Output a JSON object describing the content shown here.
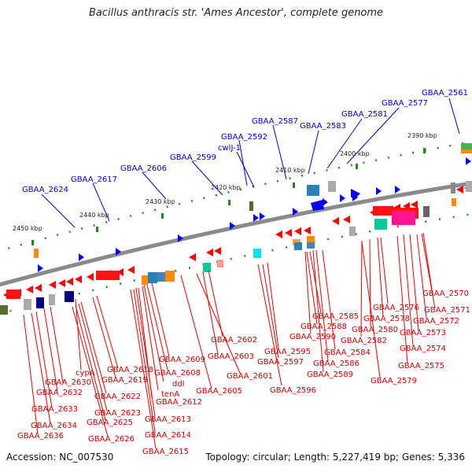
{
  "title": "Bacillus anthracis str. 'Ames Ancestor', complete genome",
  "footer": {
    "accession": "Accession: NC_007530",
    "summary": "Topology: circular; Length: 5,227,419 bp; Genes: 5,336"
  },
  "ruler": [
    {
      "label": "2390 kbp"
    },
    {
      "label": "2400 kbp"
    },
    {
      "label": "2410 kbp"
    },
    {
      "label": "2420 kbp"
    },
    {
      "label": "2430 kbp"
    },
    {
      "label": "2440 kbp"
    },
    {
      "label": "2450 kbp"
    }
  ],
  "top_labels": [
    "GBAA_2561",
    "GBAA_2577",
    "GBAA_2581",
    "GBAA_2583",
    "GBAA_2587",
    "GBAA_2592",
    "cwlJ-1",
    "GBAA_2599",
    "GBAA_2606",
    "GBAA_2617",
    "GBAA_2624"
  ],
  "bottom_labels": [
    "GBAA_2570",
    "GBAA_2571",
    "GBAA_2572",
    "GBAA_2573",
    "GBAA_2574",
    "GBAA_2575",
    "GBAA_2576",
    "GBAA_2578",
    "GBAA_2580",
    "GBAA_2582",
    "GBAA_2579",
    "GBAA_2585",
    "GBAA_2588",
    "GBAA_2590",
    "GBAA_2584",
    "GBAA_2586",
    "GBAA_2589",
    "GBAA_2595",
    "GBAA_2597",
    "GBAA_2596",
    "GBAA_2602",
    "GBAA_2603",
    "GBAA_2601",
    "GBAA_2605",
    "GBAA_2609",
    "GBAA_2608",
    "ddl",
    "tenA",
    "GBAA_2612",
    "GBAA_2613",
    "GBAA_2614",
    "GBAA_2615",
    "GBAA_2618",
    "GBAA_2619",
    "cypA",
    "GBAA_2622",
    "GBAA_2623",
    "GBAA_2625",
    "GBAA_2626",
    "GBAA_2630",
    "GBAA_2632",
    "GBAA_2633",
    "GBAA_2634",
    "GBAA_2636"
  ],
  "colors": {
    "backbone": "#888888",
    "forward_marker": "#0000ff",
    "reverse_gene": "#ff0000",
    "tick_green": "#228822",
    "top_label": "#0000cc",
    "bottom_label": "#cc0000"
  }
}
